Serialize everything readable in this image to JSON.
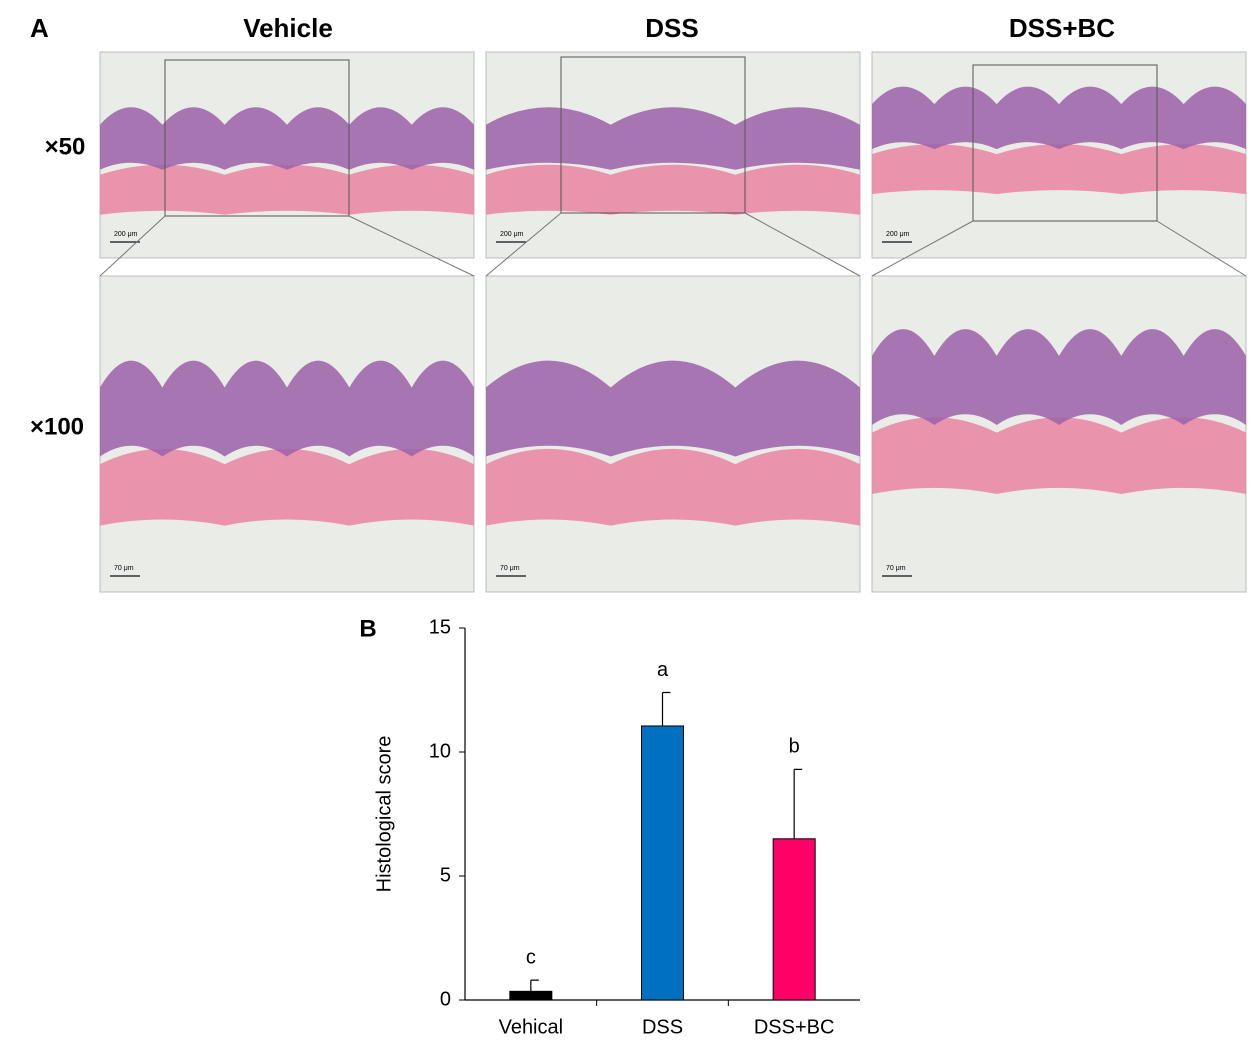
{
  "panel_a": {
    "label": "A",
    "columns": [
      "Vehicle",
      "DSS",
      "DSS+BC"
    ],
    "rows": [
      "×50",
      "×100"
    ],
    "scale_bars": [
      "200 μm",
      "70 μm"
    ]
  },
  "chart_data": {
    "type": "bar",
    "panel_label": "B",
    "ylabel": "Histological score",
    "categories": [
      "Vehical",
      "DSS",
      "DSS+BC"
    ],
    "values": [
      0.35,
      11.05,
      6.5
    ],
    "errors": [
      0.45,
      1.35,
      2.8
    ],
    "colors": [
      "#000000",
      "#0070c0",
      "#ff0066"
    ],
    "annotations": [
      "c",
      "a",
      "b"
    ],
    "ylim": [
      0,
      15
    ],
    "yticks": [
      0,
      5,
      10,
      15
    ]
  }
}
